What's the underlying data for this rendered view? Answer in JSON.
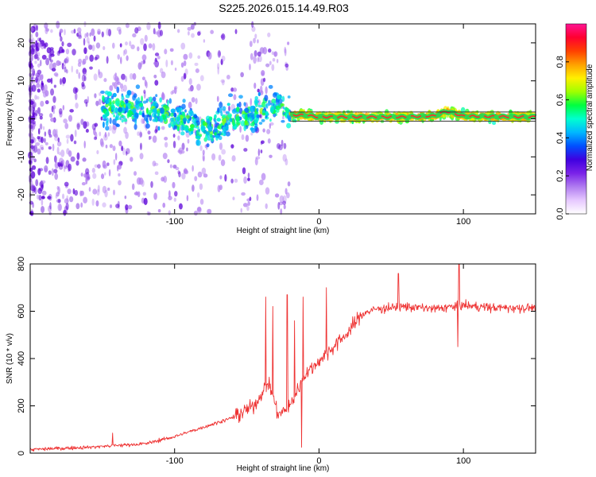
{
  "title": "S225.2026.015.14.49.R03",
  "colors": {
    "snr_line": "#ee3333",
    "spectrum_dense": "#5b00d8",
    "spectrum_light": "#b07cf0",
    "carrier_band": "#00e060",
    "carrier_core": "#ff2a2a",
    "axis": "#000000"
  },
  "chart_data": [
    {
      "type": "heatmap",
      "name": "spectrogram",
      "xlabel": "Height of straight line (km)",
      "ylabel": "Frequency (Hz)",
      "xlim": [
        -200,
        150
      ],
      "ylim": [
        -25,
        25
      ],
      "xticks": [
        -100,
        0,
        100
      ],
      "yticks": [
        -20,
        -10,
        0,
        10,
        20
      ],
      "band_lines_hz": [
        1.8,
        -0.6
      ],
      "colorbar": {
        "label": "Normalized spectral amplitude",
        "range": [
          0,
          1
        ],
        "ticks": [
          0.0,
          0.2,
          0.4,
          0.6,
          0.8
        ],
        "tick_labels": [
          "0.0",
          "0.2",
          "0.4",
          "0.6",
          "0.8"
        ],
        "colors": [
          "#ffffff",
          "#e6c8ff",
          "#b07cf0",
          "#7a22e8",
          "#3f00e0",
          "#0050ff",
          "#00b8ff",
          "#00ffd0",
          "#00ff40",
          "#a0ff00",
          "#fff000",
          "#ffa000",
          "#ff4000",
          "#ff0030",
          "#ff1493"
        ]
      },
      "ridge": {
        "x": [
          -150,
          -130,
          -110,
          -90,
          -80,
          -70,
          -60,
          -50,
          -40,
          -30,
          -25,
          -20,
          -10,
          0,
          20,
          40,
          60,
          80,
          88,
          100,
          150
        ],
        "y": [
          3,
          3,
          2,
          -1,
          -3,
          -2,
          1,
          0,
          2,
          3,
          4,
          1,
          1,
          0.5,
          0.5,
          0.5,
          0.5,
          0.8,
          2,
          0.7,
          0.5
        ]
      }
    },
    {
      "type": "line",
      "name": "snr",
      "xlabel": "Height of straight line (km)",
      "ylabel": "SNR (10 * v/v)",
      "xlim": [
        -200,
        150
      ],
      "ylim": [
        0,
        800
      ],
      "xticks": [
        -100,
        0,
        100
      ],
      "yticks": [
        0,
        200,
        400,
        600,
        800
      ],
      "trend": {
        "x": [
          -200,
          -160,
          -120,
          -100,
          -80,
          -60,
          -45,
          -35,
          -28,
          -20,
          -10,
          0,
          10,
          20,
          30,
          40,
          60,
          80,
          100,
          120,
          150
        ],
        "y": [
          15,
          25,
          40,
          70,
          110,
          150,
          200,
          300,
          160,
          200,
          330,
          390,
          450,
          510,
          590,
          610,
          620,
          610,
          625,
          615,
          615
        ]
      },
      "noise_amplitude": 40,
      "spikes": [
        {
          "x": -143,
          "y": 85
        },
        {
          "x": -37,
          "y": 660
        },
        {
          "x": -32,
          "y": 620
        },
        {
          "x": -22,
          "y": 670
        },
        {
          "x": -17,
          "y": 560
        },
        {
          "x": -11,
          "y": 660
        },
        {
          "x": -12,
          "y": 25
        },
        {
          "x": 5,
          "y": 700
        },
        {
          "x": 55,
          "y": 760
        },
        {
          "x": 97,
          "y": 800
        },
        {
          "x": 96,
          "y": 450
        }
      ]
    }
  ]
}
